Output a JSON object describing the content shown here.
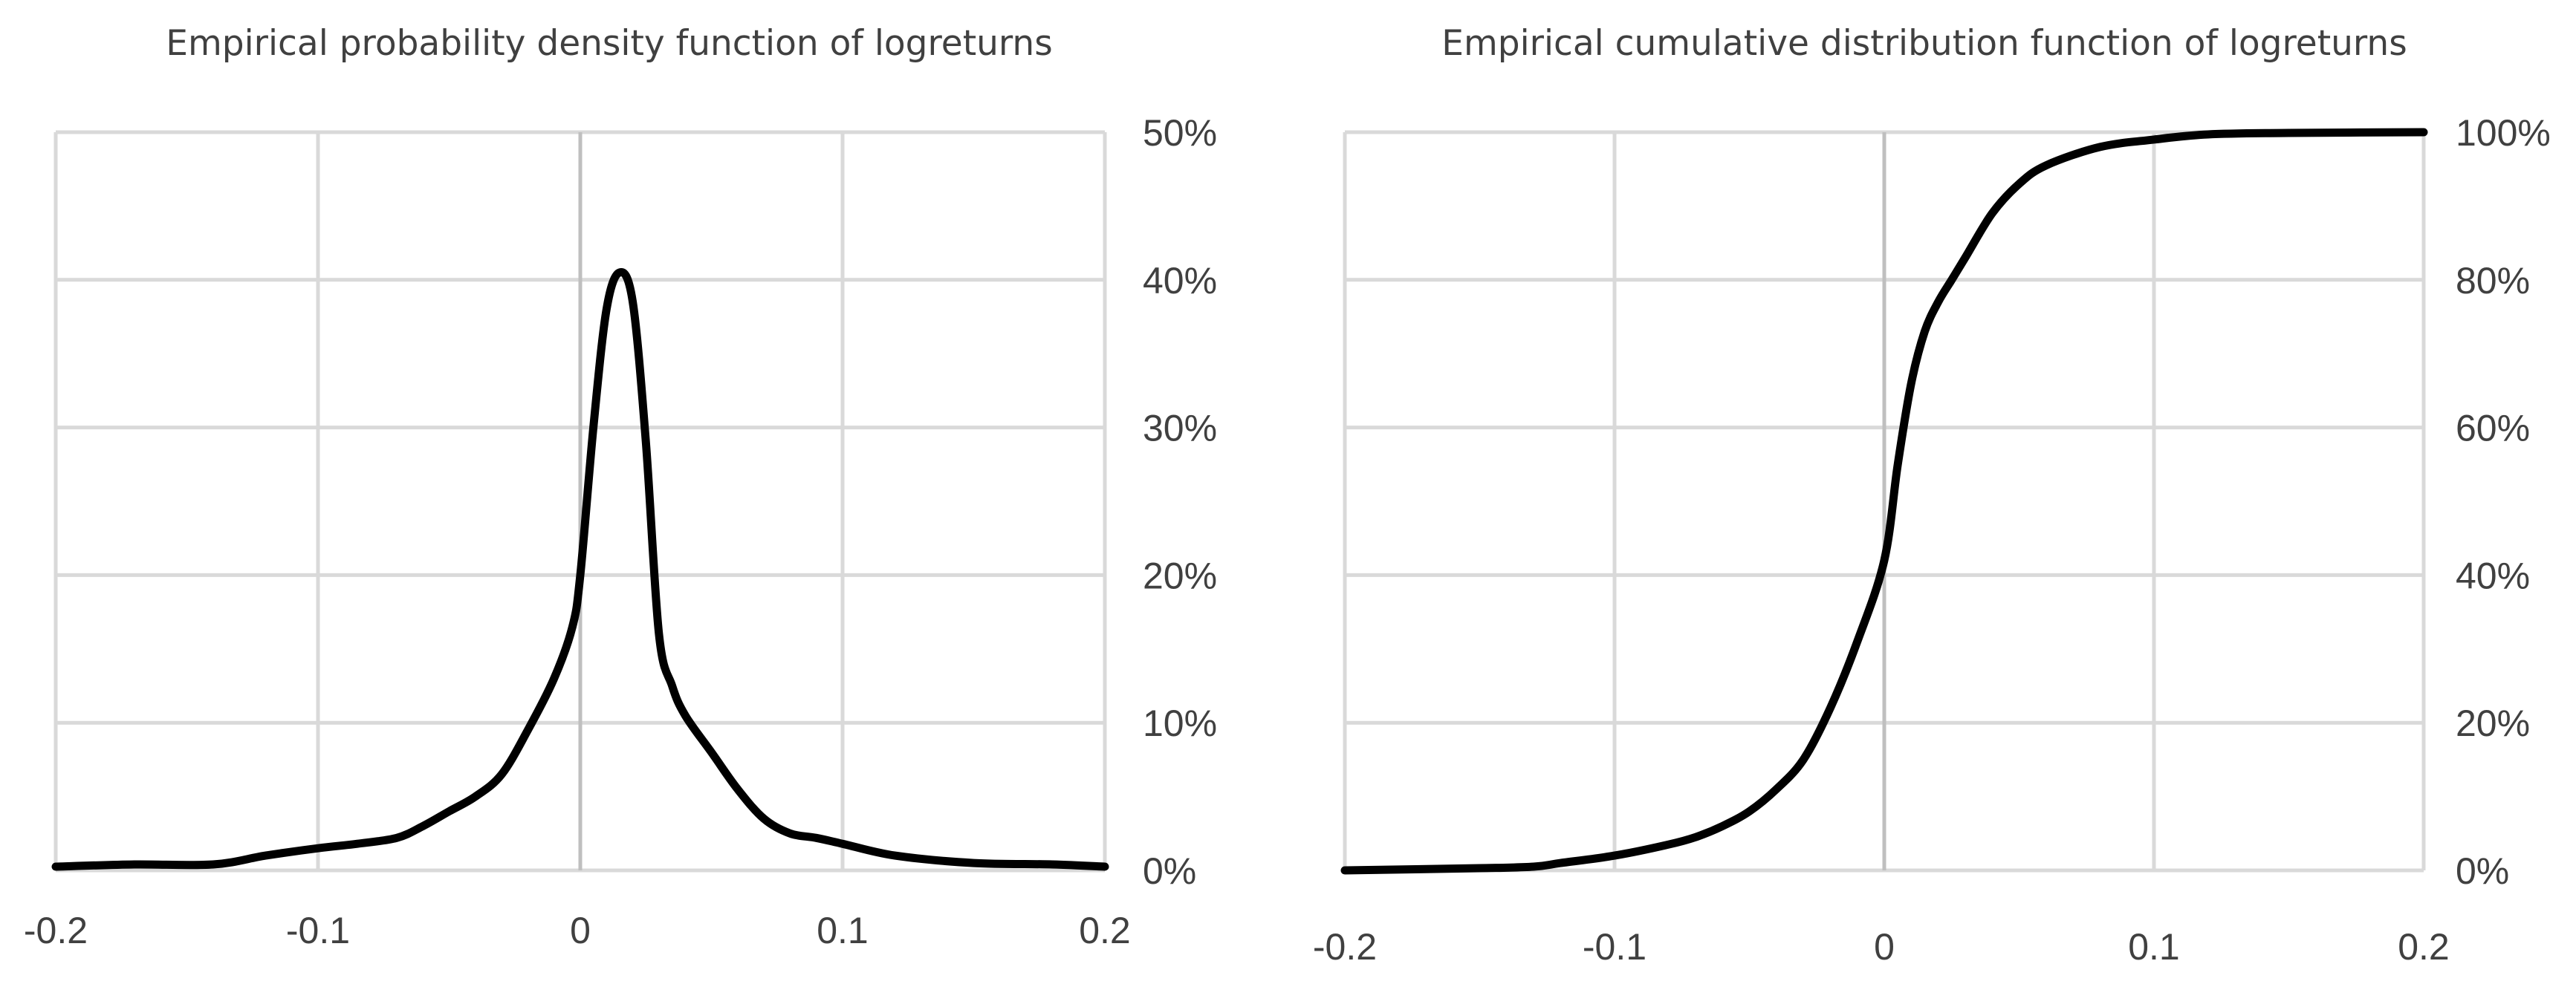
{
  "chart_data": [
    {
      "type": "line",
      "title": "Empirical probability density function of logreturns",
      "xlabel": "",
      "ylabel": "",
      "xlim": [
        -0.2,
        0.2
      ],
      "ylim": [
        0,
        0.5
      ],
      "x_ticks": [
        -0.2,
        -0.1,
        0,
        0.1,
        0.2
      ],
      "x_tick_labels": [
        "-0.2",
        "-0.1",
        "0",
        "0.1",
        "0.2"
      ],
      "y_ticks": [
        0,
        0.1,
        0.2,
        0.3,
        0.4,
        0.5
      ],
      "y_tick_labels": [
        "0%",
        "10%",
        "20%",
        "30%",
        "40%",
        "50%"
      ],
      "y_axis_side": "right",
      "grid": true,
      "line_color": "#000000",
      "x": [
        -0.2,
        -0.17,
        -0.14,
        -0.12,
        -0.1,
        -0.085,
        -0.07,
        -0.06,
        -0.05,
        -0.04,
        -0.03,
        -0.02,
        -0.01,
        -0.003,
        0.0,
        0.005,
        0.01,
        0.015,
        0.02,
        0.025,
        0.03,
        0.035,
        0.04,
        0.05,
        0.06,
        0.07,
        0.08,
        0.09,
        0.1,
        0.12,
        0.15,
        0.18,
        0.2
      ],
      "y": [
        0.0025,
        0.004,
        0.004,
        0.01,
        0.015,
        0.018,
        0.022,
        0.03,
        0.04,
        0.05,
        0.065,
        0.095,
        0.13,
        0.165,
        0.2,
        0.3,
        0.38,
        0.405,
        0.385,
        0.29,
        0.16,
        0.125,
        0.105,
        0.08,
        0.055,
        0.035,
        0.025,
        0.022,
        0.018,
        0.01,
        0.005,
        0.004,
        0.0025
      ]
    },
    {
      "type": "line",
      "title": "Empirical cumulative distribution  function of logreturns",
      "xlabel": "",
      "ylabel": "",
      "xlim": [
        -0.2,
        0.2
      ],
      "ylim": [
        0,
        1
      ],
      "x_ticks": [
        -0.2,
        -0.1,
        0,
        0.1,
        0.2
      ],
      "x_tick_labels": [
        "-0.2",
        "-0.1",
        "0",
        "0.1",
        "0.2"
      ],
      "y_ticks": [
        0,
        0.2,
        0.4,
        0.6,
        0.8,
        1.0
      ],
      "y_tick_labels": [
        "0%",
        "20%",
        "40%",
        "60%",
        "80%",
        "100%"
      ],
      "y_axis_side": "right",
      "grid": true,
      "line_color": "#000000",
      "x": [
        -0.2,
        -0.15,
        -0.13,
        -0.12,
        -0.1,
        -0.08,
        -0.07,
        -0.06,
        -0.05,
        -0.04,
        -0.03,
        -0.02,
        -0.01,
        0.0,
        0.005,
        0.01,
        0.015,
        0.02,
        0.025,
        0.03,
        0.04,
        0.05,
        0.06,
        0.08,
        0.1,
        0.12,
        0.15,
        0.2
      ],
      "y": [
        0.0,
        0.003,
        0.005,
        0.01,
        0.02,
        0.035,
        0.045,
        0.06,
        0.08,
        0.11,
        0.15,
        0.22,
        0.31,
        0.42,
        0.55,
        0.66,
        0.73,
        0.77,
        0.8,
        0.83,
        0.89,
        0.93,
        0.955,
        0.98,
        0.99,
        0.997,
        0.999,
        1.0
      ]
    }
  ]
}
